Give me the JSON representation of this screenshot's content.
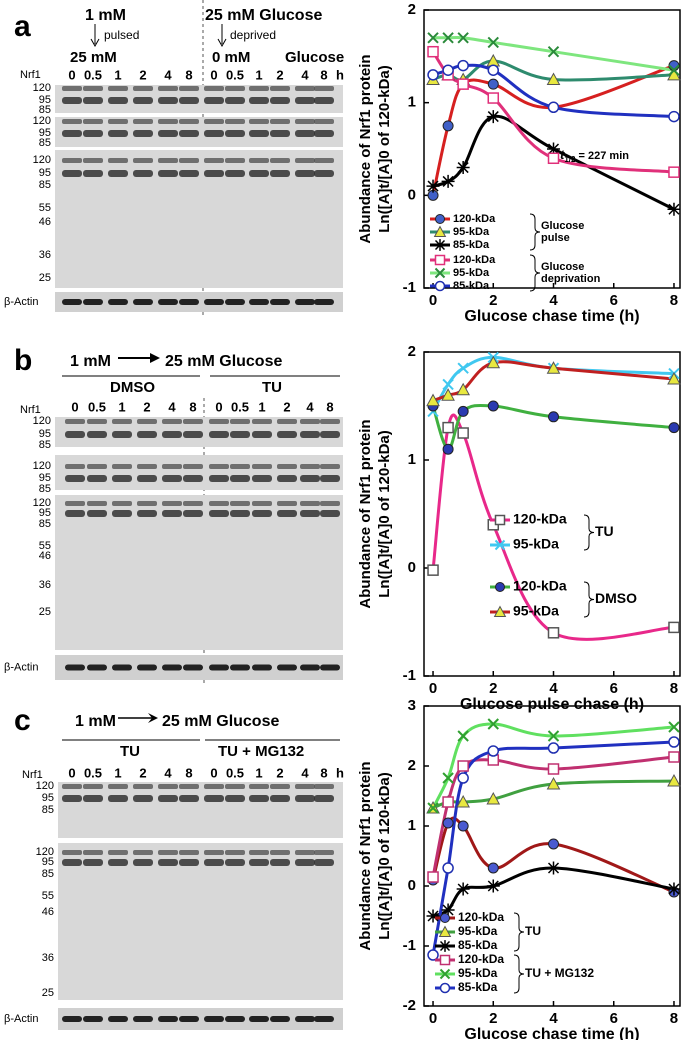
{
  "panels": [
    {
      "letter": "a",
      "headers": [
        "1 mM",
        "pulsed",
        "25 mM",
        "25 mM Glucose",
        "deprived",
        "0 mM",
        "Glucose"
      ],
      "protein": "Nrf1",
      "lanes": [
        "0",
        "0.5",
        "1",
        "2",
        "4",
        "8",
        "0",
        "0.5",
        "1",
        "2",
        "4",
        "8"
      ],
      "unit": "h",
      "markers": [
        [
          "120",
          "95",
          "85"
        ],
        [
          "120",
          "95",
          "85"
        ],
        [
          "120",
          "95",
          "85",
          "55",
          "46",
          "36",
          "25"
        ]
      ],
      "loading": "β-Actin"
    },
    {
      "letter": "b",
      "headers": [
        "1 mM",
        "25 mM Glucose",
        "DMSO",
        "TU"
      ],
      "protein": "Nrf1",
      "lanes": [
        "0",
        "0.5",
        "1",
        "2",
        "4",
        "8",
        "0",
        "0.5",
        "1",
        "2",
        "4",
        "8"
      ],
      "markers": [
        [
          "120",
          "95",
          "85"
        ],
        [
          "120",
          "95",
          "85"
        ],
        [
          "120",
          "95",
          "85",
          "55",
          "46",
          "36",
          "25"
        ]
      ],
      "loading": "β-Actin"
    },
    {
      "letter": "c",
      "headers": [
        "1 mM",
        "25 mM Glucose",
        "TU",
        "TU + MG132"
      ],
      "protein": "Nrf1",
      "lanes": [
        "0",
        "0.5",
        "1",
        "2",
        "4",
        "8",
        "0",
        "0.5",
        "1",
        "2",
        "4",
        "8"
      ],
      "unit": "h",
      "markers": [
        [
          "120",
          "95",
          "85"
        ],
        [
          "120",
          "95",
          "85",
          "55",
          "46",
          "36",
          "25"
        ]
      ],
      "loading": "β-Actin"
    }
  ],
  "chart_data": [
    {
      "type": "line",
      "y_label": [
        "Abundance of Nrf1 protein",
        "Ln([A]t/[A]0 of 120-kDa)"
      ],
      "x_label": "Glucose chase time (h)",
      "x": [
        0,
        0.5,
        1,
        2,
        4,
        8
      ],
      "xlim": [
        -0.3,
        8.2
      ],
      "xticks": [
        0,
        2,
        4,
        6,
        8
      ],
      "ylim": [
        -1,
        2
      ],
      "yticks": [
        -1,
        0,
        1,
        2
      ],
      "annotation": {
        "t": "t",
        "sub": "1/2",
        "rest": " = 227 min"
      },
      "legend_groups": [
        [
          "Glucose",
          "pulse"
        ],
        [
          "Glucose",
          "deprivation"
        ]
      ],
      "series": [
        {
          "name": "120-kDa",
          "group": 0,
          "marker": "circle",
          "color": "#4060c8",
          "line_color": "#d62020",
          "values": [
            0,
            0.75,
            1.2,
            1.2,
            0.95,
            1.4
          ]
        },
        {
          "name": "95-kDa",
          "group": 0,
          "marker": "triangle",
          "color": "#e8e840",
          "line_color": "#2e8b6e",
          "values": [
            1.25,
            1.3,
            1.25,
            1.45,
            1.25,
            1.3
          ]
        },
        {
          "name": "85-kDa",
          "group": 0,
          "marker": "star",
          "color": "#000000",
          "line_color": "#000000",
          "values": [
            0.1,
            0.15,
            0.3,
            0.85,
            0.5,
            -0.15
          ]
        },
        {
          "name": "120-kDa",
          "group": 1,
          "marker": "square",
          "color": "#e0307a",
          "line_color": "#e0307a",
          "values": [
            1.55,
            1.3,
            1.2,
            1.05,
            0.4,
            0.25
          ]
        },
        {
          "name": "95-kDa",
          "group": 1,
          "marker": "x",
          "color": "#2a8a3a",
          "line_color": "#7ee67e",
          "values": [
            1.7,
            1.7,
            1.7,
            1.65,
            1.55,
            1.35
          ]
        },
        {
          "name": "85-kDa",
          "group": 1,
          "marker": "ocircle",
          "color": "#2030b0",
          "line_color": "#2030c0",
          "values": [
            1.3,
            1.35,
            1.4,
            1.35,
            0.95,
            0.85
          ]
        }
      ]
    },
    {
      "type": "line",
      "y_label": [
        "Abundance of Nrf1 protein",
        "Ln([A]t/[A]0 of 120-kDa)"
      ],
      "x_label": "Glucose pulse chase (h)",
      "x": [
        0,
        0.5,
        1,
        2,
        4,
        8
      ],
      "xlim": [
        -0.3,
        8.2
      ],
      "xticks": [
        0,
        2,
        4,
        6,
        8
      ],
      "ylim": [
        -1,
        2
      ],
      "yticks": [
        -1,
        0,
        1,
        2
      ],
      "legend_groups": [
        [
          "TU"
        ],
        [
          "DMSO"
        ]
      ],
      "series": [
        {
          "name": "120-kDa",
          "group": 0,
          "marker": "square",
          "color": "#555555",
          "line_color": "#e8288a",
          "values": [
            -0.02,
            1.3,
            1.25,
            0.4,
            -0.6,
            -0.55
          ]
        },
        {
          "name": "95-kDa",
          "group": 0,
          "marker": "x",
          "color": "#40c8f0",
          "line_color": "#40c8f0",
          "values": [
            1.45,
            1.7,
            1.85,
            1.95,
            1.85,
            1.8
          ]
        },
        {
          "name": "120-kDa",
          "group": 1,
          "marker": "circle",
          "color": "#2a3ab0",
          "line_color": "#40b040",
          "values": [
            1.5,
            1.1,
            1.45,
            1.5,
            1.4,
            1.3
          ]
        },
        {
          "name": "95-kDa",
          "group": 1,
          "marker": "triangle",
          "color": "#e8e840",
          "line_color": "#c02020",
          "values": [
            1.55,
            1.6,
            1.65,
            1.9,
            1.85,
            1.75
          ]
        }
      ]
    },
    {
      "type": "line",
      "y_label": [
        "Abundance of Nrf1 protein",
        "Ln([A]t/[A]0 of 120-kDa)"
      ],
      "x_label": "Glucose chase time (h)",
      "x": [
        0,
        0.5,
        1,
        2,
        4,
        8
      ],
      "xlim": [
        -0.3,
        8.2
      ],
      "xticks": [
        0,
        2,
        4,
        6,
        8
      ],
      "ylim": [
        -2,
        3
      ],
      "yticks": [
        -2,
        -1,
        0,
        1,
        2,
        3
      ],
      "legend_groups": [
        [
          "TU"
        ],
        [
          "TU + MG132"
        ]
      ],
      "series": [
        {
          "name": "120-kDa",
          "group": 0,
          "marker": "circle",
          "color": "#4a5ad0",
          "line_color": "#a01818",
          "values": [
            0.1,
            1.05,
            1.0,
            0.3,
            0.7,
            -0.1
          ]
        },
        {
          "name": "95-kDa",
          "group": 0,
          "marker": "triangle",
          "color": "#e8e840",
          "line_color": "#40a040",
          "values": [
            1.3,
            1.4,
            1.4,
            1.45,
            1.7,
            1.75
          ]
        },
        {
          "name": "85-kDa",
          "group": 0,
          "marker": "star",
          "color": "#000000",
          "line_color": "#000000",
          "values": [
            -0.5,
            -0.4,
            -0.05,
            0,
            0.3,
            -0.05
          ]
        },
        {
          "name": "120-kDa",
          "group": 1,
          "marker": "square",
          "color": "#c03070",
          "line_color": "#c03070",
          "values": [
            0.15,
            1.4,
            2.0,
            2.1,
            1.95,
            2.15
          ]
        },
        {
          "name": "95-kDa",
          "group": 1,
          "marker": "x",
          "color": "#30a030",
          "line_color": "#60e060",
          "values": [
            1.3,
            1.8,
            2.5,
            2.7,
            2.5,
            2.65
          ]
        },
        {
          "name": "85-kDa",
          "group": 1,
          "marker": "ocircle",
          "color": "#2030b0",
          "line_color": "#2030c0",
          "values": [
            -1.15,
            0.3,
            1.8,
            2.25,
            2.3,
            2.4
          ]
        }
      ]
    }
  ]
}
